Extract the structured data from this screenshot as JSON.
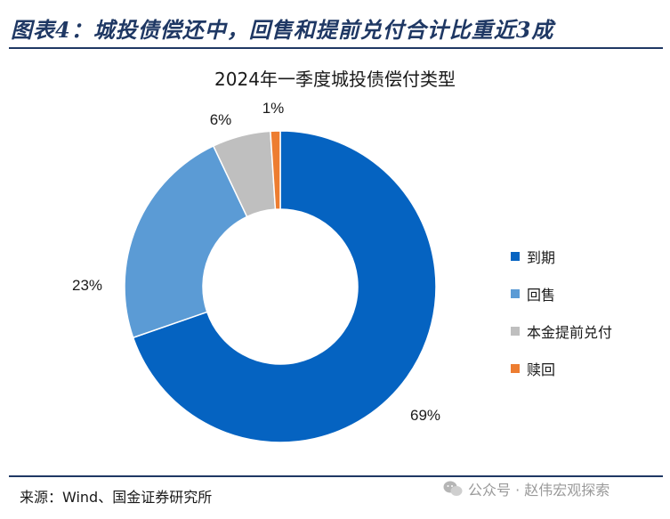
{
  "figure_title": "图表4：城投债偿还中，回售和提前兑付合计比重近3成",
  "source": "来源：Wind、国金证券研究所",
  "watermark": "公众号 · 赵伟宏观探索",
  "chart_data": {
    "type": "pie",
    "donut": true,
    "title": "2024年一季度城投债偿付类型",
    "legend_position": "right",
    "categories": [
      "到期",
      "回售",
      "本金提前兑付",
      "赎回"
    ],
    "values": [
      69,
      23,
      6,
      1
    ],
    "labels": [
      "69%",
      "23%",
      "6%",
      "1%"
    ],
    "colors": [
      "#0563c1",
      "#5b9bd5",
      "#bfbfbf",
      "#ed7d31"
    ]
  }
}
